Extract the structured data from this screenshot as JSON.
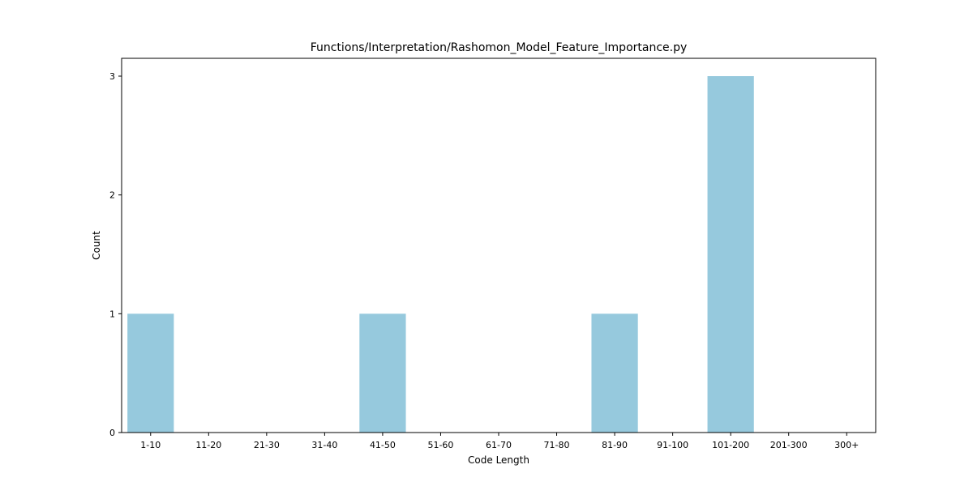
{
  "chart_data": {
    "type": "bar",
    "title": "Functions/Interpretation/Rashomon_Model_Feature_Importance.py",
    "xlabel": "Code Length",
    "ylabel": "Count",
    "categories": [
      "1-10",
      "11-20",
      "21-30",
      "31-40",
      "41-50",
      "51-60",
      "61-70",
      "71-80",
      "81-90",
      "91-100",
      "101-200",
      "201-300",
      "300+"
    ],
    "values": [
      1,
      0,
      0,
      0,
      1,
      0,
      0,
      0,
      1,
      0,
      3,
      0,
      0
    ],
    "yticks": [
      0,
      1,
      2,
      3
    ],
    "ylim": [
      0,
      3.15
    ],
    "grid": false,
    "bar_color": "#96c9dd"
  }
}
